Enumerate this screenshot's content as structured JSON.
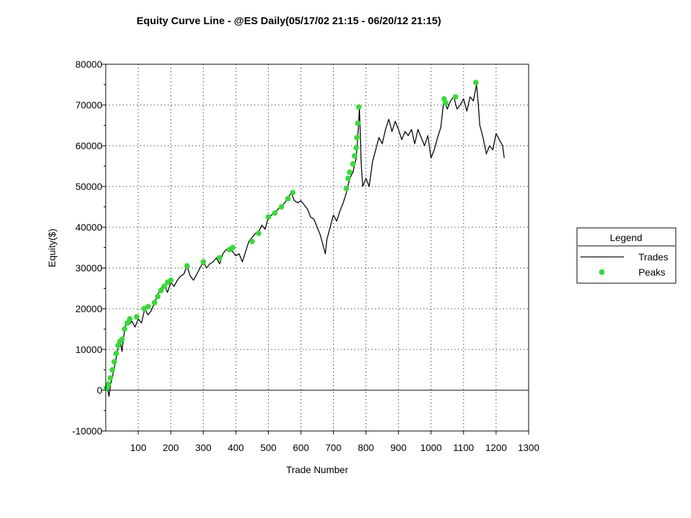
{
  "chart_data": {
    "type": "line",
    "title": "Equity Curve Line - @ES Daily(05/17/02 21:15 - 06/20/12 21:15)",
    "xlabel": "Trade Number",
    "ylabel": "Equity($)",
    "xlim": [
      0,
      1300
    ],
    "ylim": [
      -10000,
      80000
    ],
    "x_ticks": [
      100,
      200,
      300,
      400,
      500,
      600,
      700,
      800,
      900,
      1000,
      1100,
      1200,
      1300
    ],
    "y_ticks": [
      -10000,
      0,
      10000,
      20000,
      30000,
      40000,
      50000,
      60000,
      70000,
      80000
    ],
    "grid": true,
    "legend": {
      "title": "Legend",
      "placement": "right",
      "entries": [
        "Trades",
        "Peaks"
      ]
    },
    "colors": {
      "trades": "#000000",
      "peaks": "#33dd33"
    },
    "series": [
      {
        "name": "Trades",
        "type": "line",
        "x": [
          0,
          5,
          10,
          15,
          20,
          25,
          30,
          35,
          40,
          45,
          50,
          55,
          60,
          65,
          70,
          80,
          90,
          100,
          110,
          120,
          130,
          140,
          150,
          160,
          170,
          180,
          190,
          200,
          210,
          220,
          230,
          240,
          250,
          260,
          270,
          280,
          290,
          300,
          310,
          320,
          330,
          340,
          350,
          360,
          370,
          380,
          390,
          400,
          410,
          420,
          430,
          440,
          450,
          460,
          470,
          480,
          490,
          500,
          510,
          520,
          530,
          540,
          550,
          560,
          570,
          580,
          590,
          600,
          610,
          620,
          630,
          640,
          650,
          660,
          670,
          675,
          680,
          690,
          700,
          710,
          720,
          730,
          740,
          750,
          760,
          770,
          775,
          780,
          785,
          790,
          800,
          810,
          820,
          830,
          840,
          850,
          860,
          870,
          880,
          890,
          900,
          910,
          920,
          930,
          940,
          950,
          960,
          970,
          980,
          990,
          1000,
          1010,
          1020,
          1030,
          1040,
          1050,
          1060,
          1070,
          1080,
          1090,
          1100,
          1110,
          1120,
          1130,
          1140,
          1145,
          1150,
          1160,
          1170,
          1180,
          1190,
          1200,
          1210,
          1220,
          1225
        ],
        "y": [
          0,
          500,
          -1500,
          1500,
          3000,
          5000,
          7000,
          9000,
          11000,
          12000,
          9500,
          13000,
          15500,
          17000,
          16000,
          17000,
          15500,
          17500,
          16500,
          20000,
          18500,
          19500,
          21500,
          23500,
          25000,
          26000,
          24000,
          26500,
          25500,
          27000,
          28000,
          28500,
          30500,
          28000,
          27000,
          28500,
          30000,
          31500,
          30000,
          31000,
          31500,
          32500,
          31000,
          33500,
          34500,
          35000,
          34000,
          33000,
          33500,
          31500,
          34000,
          36500,
          37500,
          38500,
          39000,
          40500,
          39500,
          42500,
          43000,
          43500,
          44500,
          45000,
          46000,
          47000,
          48500,
          46500,
          46000,
          46500,
          45500,
          44500,
          42500,
          42000,
          40000,
          38000,
          35000,
          33500,
          37000,
          40000,
          43000,
          41500,
          44000,
          46000,
          48500,
          52000,
          53500,
          57000,
          62000,
          69500,
          56000,
          50000,
          52000,
          50000,
          56000,
          59000,
          62000,
          60500,
          64000,
          66500,
          63500,
          66000,
          64000,
          61500,
          63500,
          62500,
          64000,
          60500,
          64000,
          62000,
          60000,
          62500,
          57000,
          59000,
          62000,
          64500,
          71500,
          69000,
          71000,
          72000,
          69000,
          70000,
          71500,
          68500,
          72000,
          71000,
          75000,
          70500,
          65000,
          62000,
          58000,
          60000,
          59000,
          63000,
          61500,
          60000,
          57000
        ]
      },
      {
        "name": "Peaks",
        "type": "scatter",
        "x": [
          2,
          8,
          14,
          20,
          26,
          32,
          38,
          44,
          50,
          58,
          66,
          74,
          95,
          118,
          130,
          150,
          160,
          170,
          180,
          190,
          200,
          250,
          300,
          350,
          380,
          390,
          450,
          470,
          500,
          520,
          540,
          560,
          575,
          740,
          745,
          750,
          760,
          765,
          770,
          772,
          775,
          778,
          1040,
          1045,
          1075,
          1138
        ],
        "y": [
          500,
          1500,
          3000,
          5000,
          7000,
          9000,
          11000,
          12000,
          12500,
          15000,
          16500,
          17500,
          18000,
          20000,
          20500,
          21500,
          23000,
          24500,
          25500,
          26500,
          27000,
          30500,
          31500,
          32500,
          34500,
          35000,
          36500,
          38500,
          42500,
          43500,
          45000,
          47000,
          48500,
          49500,
          52000,
          53500,
          55500,
          57500,
          59500,
          62000,
          65500,
          69500,
          71500,
          70500,
          72000,
          75500
        ]
      }
    ]
  }
}
